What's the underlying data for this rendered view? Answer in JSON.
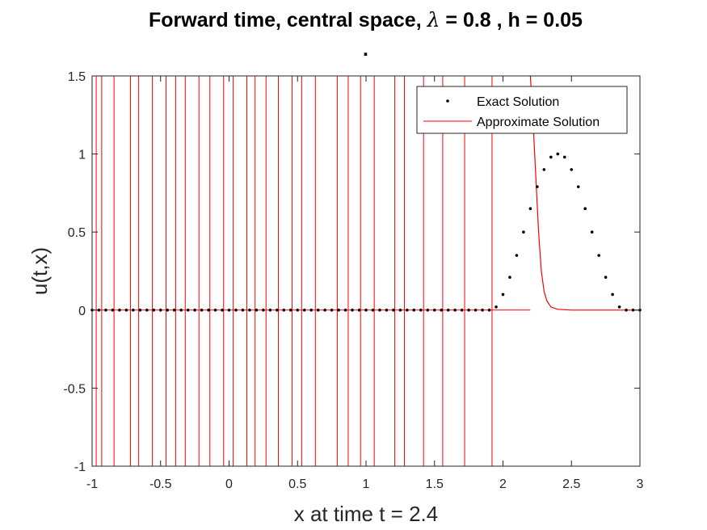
{
  "chart_data": {
    "type": "line",
    "title_prefix": "Forward time, central space, ",
    "title_symbol": "λ",
    "title_suffix": " = 0.8 , h = 0.05",
    "subtitle": ".",
    "xlabel": "x at time t = 2.4",
    "ylabel": "u(t,x)",
    "xlim": [
      -1,
      3
    ],
    "ylim": [
      -1,
      1.5
    ],
    "xticks": [
      -1,
      -0.5,
      0,
      0.5,
      1,
      1.5,
      2,
      2.5,
      3
    ],
    "xtick_labels": [
      "-1",
      "-0.5",
      "0",
      "0.5",
      "1",
      "1.5",
      "2",
      "2.5",
      "3"
    ],
    "yticks": [
      -1,
      -0.5,
      0,
      0.5,
      1,
      1.5
    ],
    "ytick_labels": [
      "-1",
      "-0.5",
      "0",
      "0.5",
      "1",
      "1.5"
    ],
    "grid": false,
    "legend_position": "top-right",
    "colors": {
      "exact": "#000000",
      "approx": "#ff0000",
      "axes": "#262626"
    },
    "series": [
      {
        "name": "Exact Solution",
        "style": "dots",
        "x": [
          -1,
          -0.95,
          -0.9,
          -0.85,
          -0.8,
          -0.75,
          -0.7,
          -0.65,
          -0.6,
          -0.55,
          -0.5,
          -0.45,
          -0.4,
          -0.35,
          -0.3,
          -0.25,
          -0.2,
          -0.15,
          -0.1,
          -0.05,
          0,
          0.05,
          0.1,
          0.15,
          0.2,
          0.25,
          0.3,
          0.35,
          0.4,
          0.45,
          0.5,
          0.55,
          0.6,
          0.65,
          0.7,
          0.75,
          0.8,
          0.85,
          0.9,
          0.95,
          1,
          1.05,
          1.1,
          1.15,
          1.2,
          1.25,
          1.3,
          1.35,
          1.4,
          1.45,
          1.5,
          1.55,
          1.6,
          1.65,
          1.7,
          1.75,
          1.8,
          1.85,
          1.9,
          1.95,
          2,
          2.05,
          2.1,
          2.15,
          2.2,
          2.25,
          2.3,
          2.35,
          2.4,
          2.45,
          2.5,
          2.55,
          2.6,
          2.65,
          2.7,
          2.75,
          2.8,
          2.85,
          2.9,
          2.95,
          3
        ],
        "y": [
          0,
          0,
          0,
          0,
          0,
          0,
          0,
          0,
          0,
          0,
          0,
          0,
          0,
          0,
          0,
          0,
          0,
          0,
          0,
          0,
          0,
          0,
          0,
          0,
          0,
          0,
          0,
          0,
          0,
          0,
          0,
          0,
          0,
          0,
          0,
          0,
          0,
          0,
          0,
          0,
          0,
          0,
          0,
          0,
          0,
          0,
          0,
          0,
          0,
          0,
          0,
          0,
          0,
          0,
          0,
          0,
          0,
          0,
          0,
          0.02,
          0.1,
          0.21,
          0.35,
          0.5,
          0.65,
          0.79,
          0.9,
          0.98,
          1.0,
          0.98,
          0.9,
          0.79,
          0.65,
          0.5,
          0.35,
          0.21,
          0.1,
          0.02,
          0,
          0,
          0
        ]
      },
      {
        "name": "Approximate Solution",
        "style": "line",
        "x": [
          2.2,
          2.22,
          2.24,
          2.26,
          2.28,
          2.3,
          2.32,
          2.35,
          2.4,
          2.5,
          2.6,
          2.7,
          2.8,
          2.9,
          3.0
        ],
        "y": [
          1.5,
          1.2,
          0.85,
          0.5,
          0.25,
          0.12,
          0.06,
          0.02,
          0.005,
          0,
          0,
          0,
          0,
          0,
          0
        ],
        "oscillation_x": [
          -0.97,
          -0.93,
          -0.84,
          -0.72,
          -0.66,
          -0.56,
          -0.46,
          -0.39,
          -0.32,
          -0.22,
          -0.14,
          -0.04,
          0.03,
          0.13,
          0.19,
          0.27,
          0.36,
          0.46,
          0.53,
          0.63,
          0.79,
          0.87,
          0.96,
          1.06,
          1.21,
          1.28,
          1.42,
          1.56,
          1.72,
          1.92
        ]
      }
    ]
  }
}
